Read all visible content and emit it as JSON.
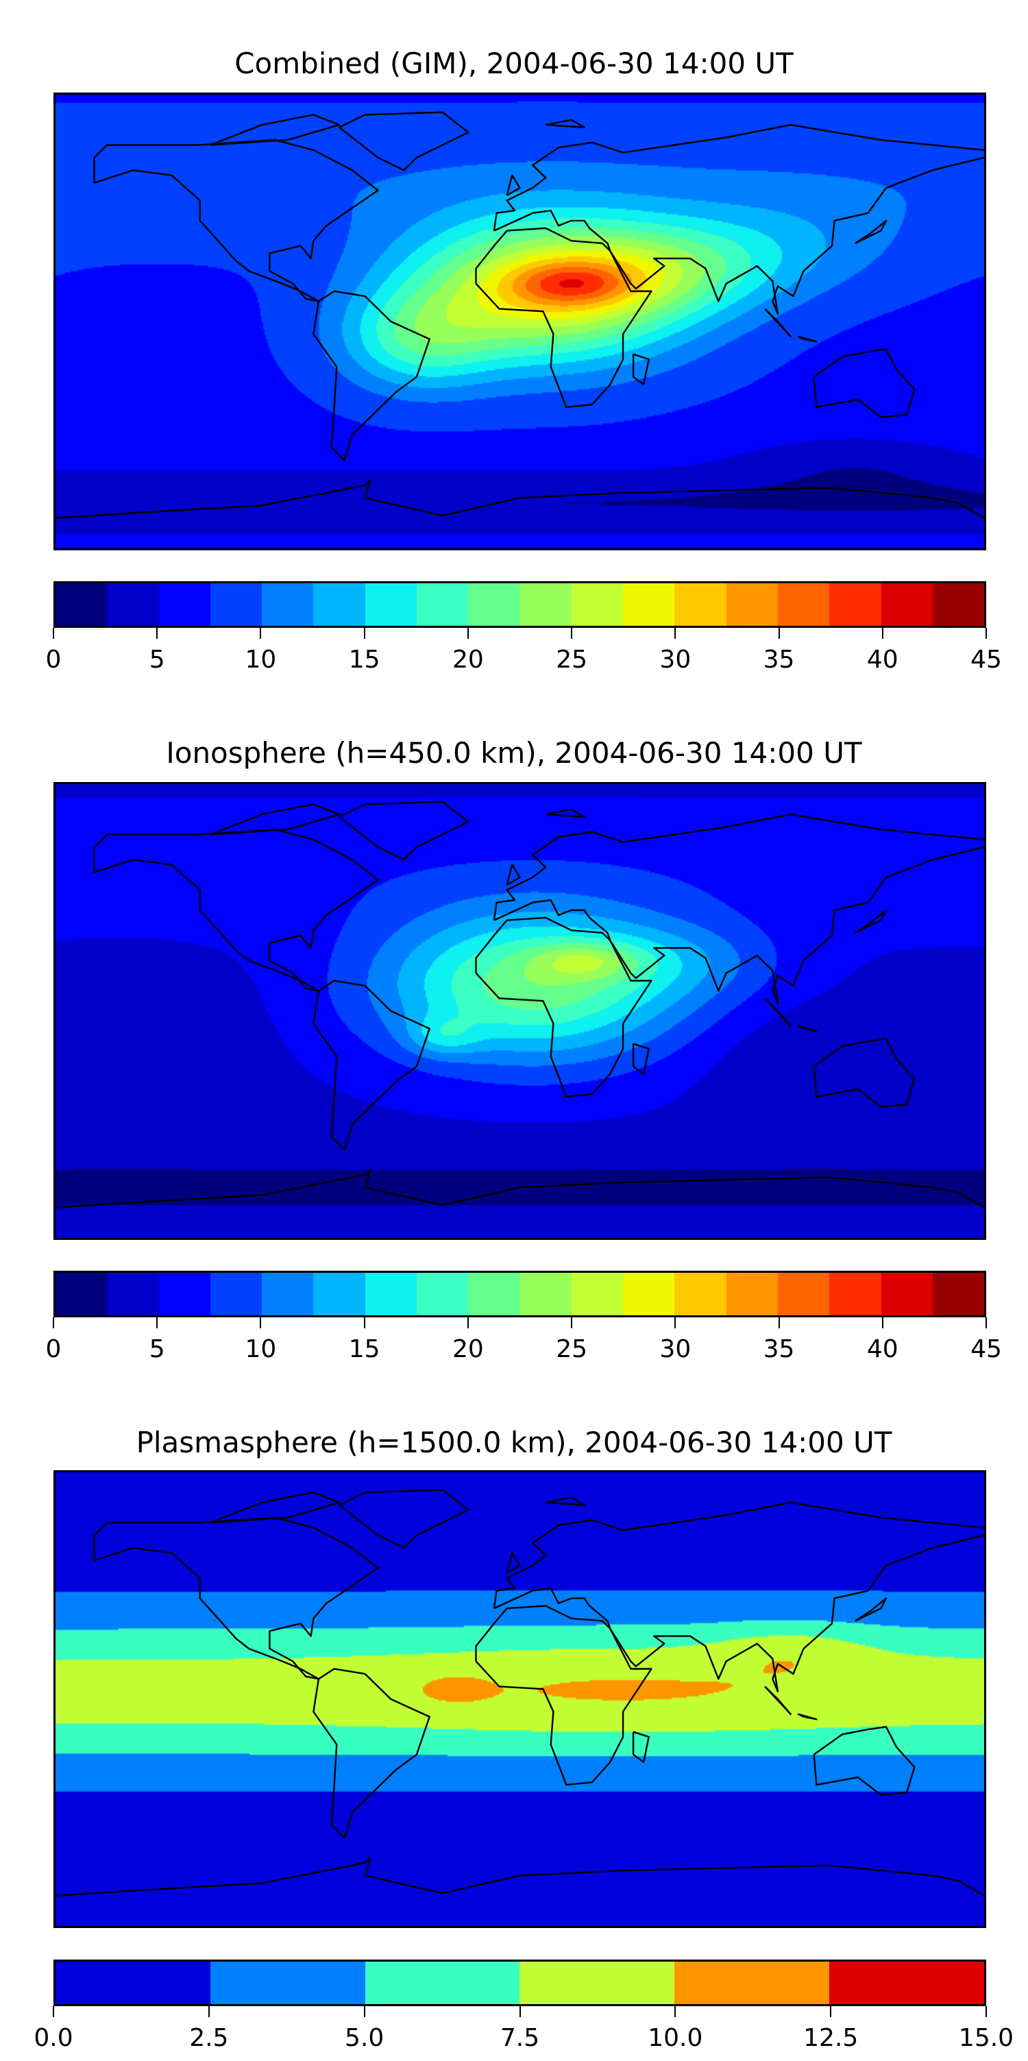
{
  "chart_data": [
    {
      "type": "heatmap",
      "subtype": "filled-contour-map",
      "title": "Combined (GIM), 2004-06-30 14:00 UT",
      "projection": "equirectangular",
      "lon_range": [
        -180,
        180
      ],
      "lat_range": [
        -90,
        90
      ],
      "field": "combined",
      "colorbar": {
        "levels": [
          0,
          2.5,
          5,
          7.5,
          10,
          12.5,
          15,
          17.5,
          20,
          22.5,
          25,
          27.5,
          30,
          32.5,
          35,
          37.5,
          40,
          42.5,
          45
        ],
        "ticks": [
          "0",
          "5",
          "10",
          "15",
          "20",
          "25",
          "30",
          "35",
          "40",
          "45"
        ],
        "tick_values": [
          0,
          5,
          10,
          15,
          20,
          25,
          30,
          35,
          40,
          45
        ],
        "range": [
          0,
          45
        ]
      },
      "features": {
        "max_approx": 41,
        "max_location": "central Africa (~15E, 15N)"
      }
    },
    {
      "type": "heatmap",
      "subtype": "filled-contour-map",
      "title": "Ionosphere  (h=450.0 km), 2004-06-30 14:00 UT",
      "projection": "equirectangular",
      "lon_range": [
        -180,
        180
      ],
      "lat_range": [
        -90,
        90
      ],
      "field": "ionosphere",
      "colorbar": {
        "levels": [
          0,
          2.5,
          5,
          7.5,
          10,
          12.5,
          15,
          17.5,
          20,
          22.5,
          25,
          27.5,
          30,
          32.5,
          35,
          37.5,
          40,
          42.5,
          45
        ],
        "ticks": [
          "0",
          "5",
          "10",
          "15",
          "20",
          "25",
          "30",
          "35",
          "40",
          "45"
        ],
        "tick_values": [
          0,
          5,
          10,
          15,
          20,
          25,
          30,
          35,
          40,
          45
        ],
        "range": [
          0,
          45
        ]
      },
      "features": {
        "max_approx": 31,
        "max_location": "North Africa (~25E, 20N)"
      }
    },
    {
      "type": "heatmap",
      "subtype": "filled-contour-map",
      "title": "Plasmasphere (h=1500.0 km), 2004-06-30 14:00 UT",
      "projection": "equirectangular",
      "lon_range": [
        -180,
        180
      ],
      "lat_range": [
        -90,
        90
      ],
      "field": "plasmasphere",
      "colorbar": {
        "levels": [
          0,
          2.5,
          5,
          7.5,
          10,
          12.5,
          15
        ],
        "ticks": [
          "0.0",
          "2.5",
          "5.0",
          "7.5",
          "10.0",
          "12.5",
          "15.0"
        ],
        "tick_values": [
          0,
          2.5,
          5,
          7.5,
          10,
          12.5,
          15
        ],
        "range": [
          0,
          15
        ]
      },
      "features": {
        "max_approx": 11,
        "max_location": "West Africa and South/East Asia"
      }
    }
  ],
  "colors": {
    "jet18": [
      "#00007f",
      "#0000c8",
      "#0000ff",
      "#0040ff",
      "#0080ff",
      "#00b4ff",
      "#0ff0f0",
      "#3cffc3",
      "#64ff8c",
      "#96ff5a",
      "#c3ff32",
      "#f0f800",
      "#ffc800",
      "#ff9600",
      "#ff6400",
      "#ff2d00",
      "#dc0000",
      "#9b0000"
    ],
    "jet6": [
      "#0000dd",
      "#0080ff",
      "#38ffc0",
      "#c1ff34",
      "#ff9600",
      "#de0000"
    ],
    "coastline": "#000000"
  }
}
